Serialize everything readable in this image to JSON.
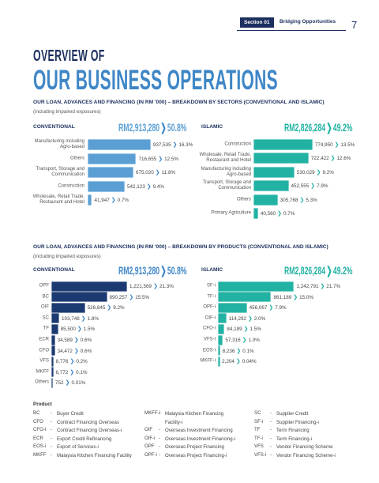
{
  "header": {
    "section": "Section 01",
    "title": "Bridging Opportunities",
    "page": "7"
  },
  "heading": {
    "line1": "OVERVIEW OF",
    "line2": "OUR BUSINESS OPERATIONS"
  },
  "sections": [
    {
      "title": "OUR LOAN, ADVANCES AND FINANCING (IN RM '000) – BREAKDOWN BY SECTORS (CONVENTIONAL AND ISLAMIC)",
      "note": "(including impaired exposures)",
      "panels": [
        {
          "label": "CONVENTIONAL",
          "total": "RM2,913,280",
          "share": "50.8%",
          "color": "#5a9fd4",
          "rows": [
            {
              "label": "Manufacturing including Agro-based",
              "value": 937535,
              "value_label": "937,535",
              "percent": "16.3%"
            },
            {
              "label": "Others",
              "value": 716655,
              "value_label": "716,655",
              "percent": "12.5%"
            },
            {
              "label": "Transport, Storage and Communication",
              "value": 675020,
              "value_label": "675,020",
              "percent": "11.8%"
            },
            {
              "label": "Construction",
              "value": 542123,
              "value_label": "542,123",
              "percent": "9.4%"
            },
            {
              "label": "Wholesale, Retail Trade, Restaurant and Hotel",
              "value": 41947,
              "value_label": "41,947",
              "percent": "0.7%"
            }
          ]
        },
        {
          "label": "ISLAMIC",
          "total": "RM2,826,284",
          "share": "49.2%",
          "color": "#22b2a3",
          "rows": [
            {
              "label": "Construction",
              "value": 774950,
              "value_label": "774,950",
              "percent": "13.5%"
            },
            {
              "label": "Wholesale, Retail Trade, Restaurant and Hotel",
              "value": 722422,
              "value_label": "722,422",
              "percent": "12.6%"
            },
            {
              "label": "Manufacturing including Agro-based",
              "value": 530029,
              "value_label": "530,029",
              "percent": "9.2%"
            },
            {
              "label": "Transport, Storage and Communication",
              "value": 452555,
              "value_label": "452,555",
              "percent": "7.9%"
            },
            {
              "label": "Others",
              "value": 305768,
              "value_label": "305,768",
              "percent": "5.3%"
            },
            {
              "label": "Primary Agriculture",
              "value": 40560,
              "value_label": "40,560",
              "percent": "0.7%"
            }
          ]
        }
      ]
    },
    {
      "title": "OUR LOAN, ADVANCES AND FINANCING (IN RM '000) – BREAKDOWN BY PRODUCTS (CONVENTIONAL AND ISLAMIC)",
      "note": "(including impaired exposures)",
      "panels": [
        {
          "label": "CONVENTIONAL",
          "total": "RM2,913,280",
          "share": "50.8%",
          "color": "#1c3a72",
          "rows": [
            {
              "label": "OPF",
              "value": 1221569,
              "value_label": "1,221,569",
              "percent": "21.3%"
            },
            {
              "label": "BC",
              "value": 890257,
              "value_label": "890,257",
              "percent": "15.5%"
            },
            {
              "label": "OIF",
              "value": 526845,
              "value_label": "526,845",
              "percent": "9.2%"
            },
            {
              "label": "SC",
              "value": 103748,
              "value_label": "103,748",
              "percent": "1.8%"
            },
            {
              "label": "TF",
              "value": 85500,
              "value_label": "85,500",
              "percent": "1.5%"
            },
            {
              "label": "ECR",
              "value": 34589,
              "value_label": "34,589",
              "percent": "0.6%"
            },
            {
              "label": "CFO",
              "value": 34472,
              "value_label": "34,472",
              "percent": "0.6%"
            },
            {
              "label": "VFS",
              "value": 8776,
              "value_label": "8,776",
              "percent": "0.2%"
            },
            {
              "label": "MKFF",
              "value": 6772,
              "value_label": "6,772",
              "percent": "0.1%"
            },
            {
              "label": "Others",
              "value": 752,
              "value_label": "752",
              "percent": "0.01%"
            }
          ]
        },
        {
          "label": "ISLAMIC",
          "total": "RM2,826,284",
          "share": "49.2%",
          "color": "#22b2a3",
          "rows": [
            {
              "label": "SF-i",
              "value": 1242791,
              "value_label": "1,242,791",
              "percent": "21.7%"
            },
            {
              "label": "TF-i",
              "value": 861189,
              "value_label": "861,189",
              "percent": "15.0%"
            },
            {
              "label": "OPF-i",
              "value": 456067,
              "value_label": "456,067",
              "percent": "7.9%"
            },
            {
              "label": "OIF-i",
              "value": 114292,
              "value_label": "114,292",
              "percent": "2.0%"
            },
            {
              "label": "CFO-i",
              "value": 84189,
              "value_label": "84,189",
              "percent": "1.5%"
            },
            {
              "label": "VFS-i",
              "value": 57316,
              "value_label": "57,316",
              "percent": "1.0%"
            },
            {
              "label": "EOS-i",
              "value": 8236,
              "value_label": "8,236",
              "percent": "0.1%"
            },
            {
              "label": "MKFF-i",
              "value": 2204,
              "value_label": "2,204",
              "percent": "0.04%"
            }
          ]
        }
      ]
    }
  ],
  "glossary": {
    "title": "Product",
    "columns": [
      [
        {
          "abbr": "BC",
          "text": "Buyer Credit"
        },
        {
          "abbr": "CFO",
          "text": "Contract Financing Overseas"
        },
        {
          "abbr": "CFO-i",
          "text": "Contract Financing Overseas-i"
        },
        {
          "abbr": "ECR",
          "text": "Export Credit Refinancing"
        },
        {
          "abbr": "EOS-i",
          "text": "Export of Services-i"
        },
        {
          "abbr": "MKFF",
          "text": "Malaysia Kitchen Financing Facility"
        }
      ],
      [
        {
          "abbr": "MKFF-i",
          "text": "Malaysia Kitchen Financing Facility-i"
        },
        {
          "abbr": "OIF",
          "text": "Overseas Investment Financing"
        },
        {
          "abbr": "OIF-i",
          "text": "Overseas Investment Financing-i"
        },
        {
          "abbr": "OPF",
          "text": "Overseas Project Financing"
        },
        {
          "abbr": "OPF-i",
          "text": "Overseas Project Financing-i"
        }
      ],
      [
        {
          "abbr": "SC",
          "text": "Supplier Credit"
        },
        {
          "abbr": "SF-i",
          "text": "Supplier Financing-i"
        },
        {
          "abbr": "TF",
          "text": "Term Financing"
        },
        {
          "abbr": "TF-i",
          "text": "Term Financing-i"
        },
        {
          "abbr": "VFS",
          "text": "Vendor Financing Scheme"
        },
        {
          "abbr": "VFS-i",
          "text": "Vendor Financing Scheme-i"
        }
      ]
    ]
  }
}
